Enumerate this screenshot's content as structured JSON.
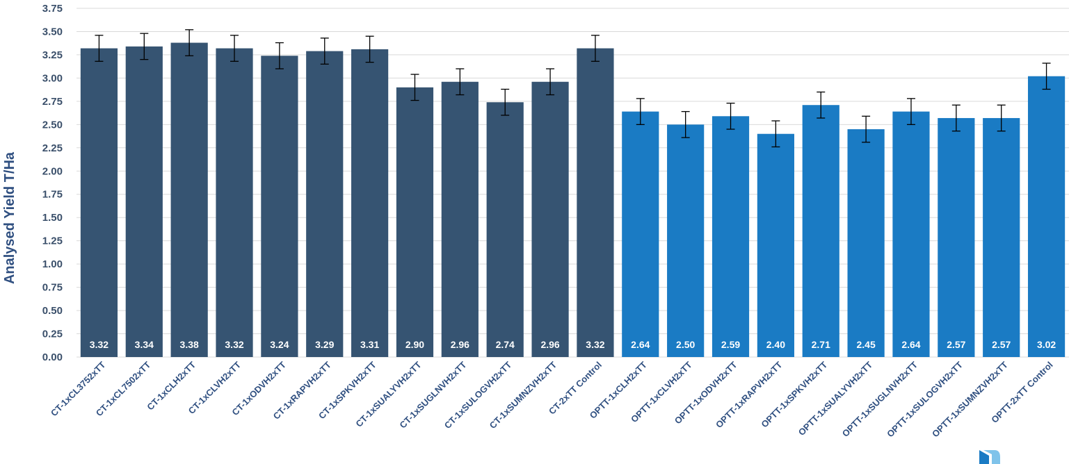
{
  "chart_data": {
    "type": "bar",
    "title": "",
    "xlabel": "",
    "ylabel": "Analysed Yield T/Ha",
    "ylim": [
      0,
      3.75
    ],
    "yticks": [
      "0.00",
      "0.25",
      "0.50",
      "0.75",
      "1.00",
      "1.25",
      "1.50",
      "1.75",
      "2.00",
      "2.25",
      "2.50",
      "2.75",
      "3.00",
      "3.25",
      "3.50",
      "3.75"
    ],
    "grid": true,
    "categories": [
      "CT-1xCL3752xTT",
      "CT-1xCL7502xTT",
      "CT-1xCLH2xTT",
      "CT-1xCLVH2xTT",
      "CT-1xODVH2xTT",
      "CT-1xRAPVH2xTT",
      "CT-1xSPKVH2xTT",
      "CT-1xSUALYVH2xTT",
      "CT-1xSUGLNVH2xTT",
      "CT-1xSULOGVH2xTT",
      "CT-1xSUMNZVH2xTT",
      "CT-2xTT Control",
      "OPTT-1xCLH2xTT",
      "OPTT-1xCLVH2xTT",
      "OPTT-1xODVH2xTT",
      "OPTT-1xRAPVH2xTT",
      "OPTT-1xSPKVH2xTT",
      "OPTT-1xSUALYVH2xTT",
      "OPTT-1xSUGLNVH2xTT",
      "OPTT-1xSULOGVH2xTT",
      "OPTT-1xSUMNZVH2xTT",
      "OPTT-2xTT Control"
    ],
    "values": [
      3.32,
      3.34,
      3.38,
      3.32,
      3.24,
      3.29,
      3.31,
      2.9,
      2.96,
      2.74,
      2.96,
      3.32,
      2.64,
      2.5,
      2.59,
      2.4,
      2.71,
      2.45,
      2.64,
      2.57,
      2.57,
      3.02
    ],
    "data_labels": [
      "3.32",
      "3.34",
      "3.38",
      "3.32",
      "3.24",
      "3.29",
      "3.31",
      "2.90",
      "2.96",
      "2.74",
      "2.96",
      "3.32",
      "2.64",
      "2.50",
      "2.59",
      "2.40",
      "2.71",
      "2.45",
      "2.64",
      "2.57",
      "2.57",
      "3.02"
    ],
    "error": [
      0.14,
      0.14,
      0.14,
      0.14,
      0.14,
      0.14,
      0.14,
      0.14,
      0.14,
      0.14,
      0.14,
      0.14,
      0.14,
      0.14,
      0.14,
      0.14,
      0.14,
      0.14,
      0.14,
      0.14,
      0.14,
      0.14
    ],
    "group": [
      "CT",
      "CT",
      "CT",
      "CT",
      "CT",
      "CT",
      "CT",
      "CT",
      "CT",
      "CT",
      "CT",
      "CT",
      "OPTT",
      "OPTT",
      "OPTT",
      "OPTT",
      "OPTT",
      "OPTT",
      "OPTT",
      "OPTT",
      "OPTT",
      "OPTT"
    ],
    "colors": {
      "CT": "#365472",
      "OPTT": "#1a7bc4",
      "grid": "#d9d9d9",
      "error": "#000000"
    }
  }
}
